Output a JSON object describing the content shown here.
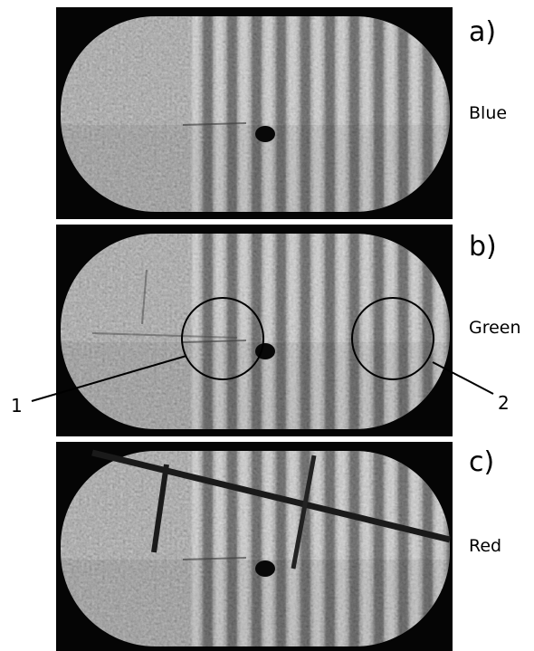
{
  "panels": [
    {
      "label": "a)",
      "caption": "Blue"
    },
    {
      "label": "b)",
      "caption": "Green"
    },
    {
      "label": "c)",
      "caption": "Red"
    }
  ],
  "annotations": [
    "1",
    "2"
  ]
}
